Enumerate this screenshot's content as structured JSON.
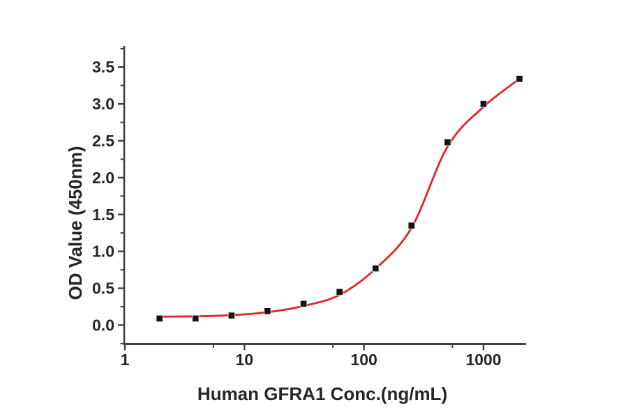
{
  "chart_data": {
    "type": "scatter",
    "title": "",
    "xlabel": "Human GFRA1 Conc.(ng/mL)",
    "ylabel": "OD Value (450nm)",
    "x_scale": "log",
    "grid": false,
    "legend": "none",
    "x": [
      1.95,
      3.9,
      7.8,
      15.6,
      31.25,
      62.5,
      125,
      250,
      500,
      1000,
      2000
    ],
    "y": [
      0.09,
      0.09,
      0.13,
      0.19,
      0.29,
      0.45,
      0.77,
      1.35,
      2.48,
      3.0,
      3.34
    ],
    "fit_curve": {
      "description": "4-parameter logistic fit",
      "points": [
        [
          1.9,
          0.115
        ],
        [
          3.9,
          0.12
        ],
        [
          7.8,
          0.135
        ],
        [
          15.6,
          0.175
        ],
        [
          31.25,
          0.26
        ],
        [
          62.5,
          0.41
        ],
        [
          125,
          0.765
        ],
        [
          250,
          1.32
        ],
        [
          500,
          2.42
        ],
        [
          1000,
          2.96
        ],
        [
          2000,
          3.34
        ]
      ]
    },
    "x_tick_values": [
      1,
      10,
      100,
      1000
    ],
    "x_tick_labels": [
      "1",
      "10",
      "100",
      "1000"
    ],
    "x_minor_tick_values": [
      5.5,
      55,
      550
    ],
    "y_tick_values": [
      0,
      0.5,
      1,
      1.5,
      2,
      2.5,
      3,
      3.5
    ],
    "y_tick_labels": [
      "0.0",
      "0.5",
      "1.0",
      "1.5",
      "2.0",
      "2.5",
      "3.0",
      "3.5"
    ],
    "y_minor_tick_values": [
      -0.25,
      0.25,
      0.75,
      1.25,
      1.75,
      2.25,
      2.75,
      3.25,
      3.75
    ],
    "xlim": [
      1,
      2250
    ],
    "ylim": [
      -0.27,
      3.78
    ],
    "colors": {
      "curve": "#e62228",
      "marker": "#141414",
      "axis": "#3f3f3f",
      "text": "#262626",
      "background": "#ffffff"
    }
  }
}
